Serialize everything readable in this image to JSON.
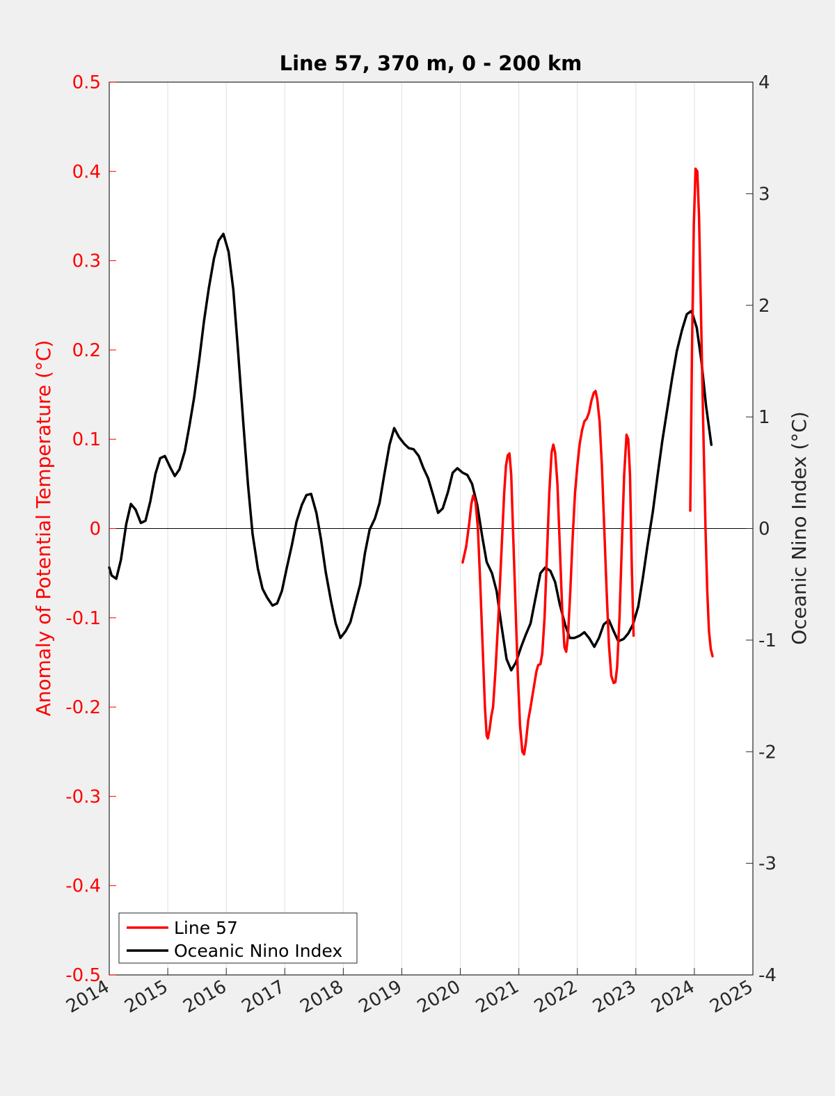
{
  "chart_data": {
    "type": "line",
    "title": "Line 57, 370 m, 0 - 200 km",
    "xlabel": "",
    "ylabel_left": "Anomaly of Potential Temperature (°C)",
    "ylabel_right": "Oceanic Nino Index (°C)",
    "xlim": [
      2014,
      2025
    ],
    "ylim_left": [
      -0.5,
      0.5
    ],
    "ylim_right": [
      -4,
      4
    ],
    "x_ticks": [
      "2014",
      "2015",
      "2016",
      "2017",
      "2018",
      "2019",
      "2020",
      "2021",
      "2022",
      "2023",
      "2024",
      "2025"
    ],
    "y_ticks_left": [
      "-0.5",
      "-0.4",
      "-0.3",
      "-0.2",
      "-0.1",
      "0",
      "0.1",
      "0.2",
      "0.3",
      "0.4",
      "0.5"
    ],
    "y_ticks_right": [
      "-4",
      "-3",
      "-2",
      "-1",
      "0",
      "1",
      "2",
      "3",
      "4"
    ],
    "grid": "vertical",
    "legend_position": "bottom-left",
    "colors": {
      "line57": "#ff0000",
      "oni": "#000000",
      "left_axis": "#ff0000",
      "right_axis": "#000000"
    },
    "series": [
      {
        "name": "Line 57",
        "axis": "left",
        "color": "#ff0000",
        "points": [
          [
            2020.04,
            -0.038
          ],
          [
            2020.1,
            -0.02
          ],
          [
            2020.15,
            0.005
          ],
          [
            2020.19,
            0.028
          ],
          [
            2020.22,
            0.037
          ],
          [
            2020.26,
            0.03
          ],
          [
            2020.3,
            0.0
          ],
          [
            2020.34,
            -0.06
          ],
          [
            2020.38,
            -0.13
          ],
          [
            2020.42,
            -0.2
          ],
          [
            2020.45,
            -0.232
          ],
          [
            2020.47,
            -0.235
          ],
          [
            2020.5,
            -0.225
          ],
          [
            2020.53,
            -0.21
          ],
          [
            2020.56,
            -0.2
          ],
          [
            2020.6,
            -0.16
          ],
          [
            2020.65,
            -0.1
          ],
          [
            2020.7,
            -0.03
          ],
          [
            2020.75,
            0.04
          ],
          [
            2020.78,
            0.07
          ],
          [
            2020.81,
            0.082
          ],
          [
            2020.84,
            0.084
          ],
          [
            2020.87,
            0.06
          ],
          [
            2020.9,
            0.0
          ],
          [
            2020.94,
            -0.08
          ],
          [
            2020.98,
            -0.16
          ],
          [
            2021.02,
            -0.22
          ],
          [
            2021.06,
            -0.25
          ],
          [
            2021.09,
            -0.253
          ],
          [
            2021.12,
            -0.24
          ],
          [
            2021.16,
            -0.215
          ],
          [
            2021.2,
            -0.2
          ],
          [
            2021.25,
            -0.18
          ],
          [
            2021.3,
            -0.16
          ],
          [
            2021.33,
            -0.153
          ],
          [
            2021.37,
            -0.152
          ],
          [
            2021.4,
            -0.14
          ],
          [
            2021.44,
            -0.1
          ],
          [
            2021.48,
            -0.03
          ],
          [
            2021.52,
            0.04
          ],
          [
            2021.56,
            0.085
          ],
          [
            2021.59,
            0.094
          ],
          [
            2021.62,
            0.085
          ],
          [
            2021.66,
            0.05
          ],
          [
            2021.7,
            -0.02
          ],
          [
            2021.74,
            -0.09
          ],
          [
            2021.78,
            -0.133
          ],
          [
            2021.81,
            -0.138
          ],
          [
            2021.84,
            -0.12
          ],
          [
            2021.88,
            -0.07
          ],
          [
            2021.92,
            -0.01
          ],
          [
            2021.96,
            0.04
          ],
          [
            2022.0,
            0.07
          ],
          [
            2022.04,
            0.095
          ],
          [
            2022.08,
            0.11
          ],
          [
            2022.12,
            0.12
          ],
          [
            2022.16,
            0.123
          ],
          [
            2022.2,
            0.13
          ],
          [
            2022.24,
            0.143
          ],
          [
            2022.28,
            0.152
          ],
          [
            2022.31,
            0.154
          ],
          [
            2022.34,
            0.145
          ],
          [
            2022.38,
            0.12
          ],
          [
            2022.42,
            0.07
          ],
          [
            2022.46,
            0.0
          ],
          [
            2022.5,
            -0.07
          ],
          [
            2022.54,
            -0.13
          ],
          [
            2022.58,
            -0.165
          ],
          [
            2022.62,
            -0.173
          ],
          [
            2022.65,
            -0.172
          ],
          [
            2022.68,
            -0.155
          ],
          [
            2022.72,
            -0.1
          ],
          [
            2022.76,
            -0.02
          ],
          [
            2022.8,
            0.06
          ],
          [
            2022.84,
            0.105
          ],
          [
            2022.87,
            0.1
          ],
          [
            2022.9,
            0.06
          ],
          [
            2022.93,
            -0.04
          ],
          [
            2022.96,
            -0.12
          ],
          [
            2023.93,
            0.02
          ],
          [
            2023.96,
            0.2
          ],
          [
            2023.99,
            0.34
          ],
          [
            2024.02,
            0.403
          ],
          [
            2024.05,
            0.4
          ],
          [
            2024.08,
            0.35
          ],
          [
            2024.11,
            0.25
          ],
          [
            2024.15,
            0.12
          ],
          [
            2024.19,
            0.0
          ],
          [
            2024.22,
            -0.07
          ],
          [
            2024.25,
            -0.115
          ],
          [
            2024.28,
            -0.135
          ],
          [
            2024.31,
            -0.143
          ]
        ]
      },
      {
        "name": "Oceanic Nino Index",
        "axis": "right",
        "color": "#000000",
        "points": [
          [
            2014.0,
            -0.35
          ],
          [
            2014.04,
            -0.42
          ],
          [
            2014.12,
            -0.45
          ],
          [
            2014.2,
            -0.28
          ],
          [
            2014.29,
            0.04
          ],
          [
            2014.37,
            0.22
          ],
          [
            2014.45,
            0.17
          ],
          [
            2014.54,
            0.05
          ],
          [
            2014.62,
            0.07
          ],
          [
            2014.7,
            0.24
          ],
          [
            2014.79,
            0.49
          ],
          [
            2014.87,
            0.63
          ],
          [
            2014.95,
            0.65
          ],
          [
            2015.04,
            0.55
          ],
          [
            2015.12,
            0.47
          ],
          [
            2015.2,
            0.53
          ],
          [
            2015.29,
            0.69
          ],
          [
            2015.37,
            0.92
          ],
          [
            2015.45,
            1.17
          ],
          [
            2015.54,
            1.52
          ],
          [
            2015.62,
            1.86
          ],
          [
            2015.7,
            2.15
          ],
          [
            2015.79,
            2.42
          ],
          [
            2015.87,
            2.58
          ],
          [
            2015.95,
            2.64
          ],
          [
            2016.04,
            2.48
          ],
          [
            2016.12,
            2.14
          ],
          [
            2016.2,
            1.6
          ],
          [
            2016.29,
            0.95
          ],
          [
            2016.37,
            0.4
          ],
          [
            2016.45,
            -0.05
          ],
          [
            2016.54,
            -0.36
          ],
          [
            2016.62,
            -0.54
          ],
          [
            2016.7,
            -0.62
          ],
          [
            2016.79,
            -0.69
          ],
          [
            2016.87,
            -0.67
          ],
          [
            2016.95,
            -0.56
          ],
          [
            2017.04,
            -0.34
          ],
          [
            2017.12,
            -0.15
          ],
          [
            2017.2,
            0.06
          ],
          [
            2017.29,
            0.21
          ],
          [
            2017.37,
            0.3
          ],
          [
            2017.45,
            0.31
          ],
          [
            2017.54,
            0.14
          ],
          [
            2017.62,
            -0.1
          ],
          [
            2017.7,
            -0.39
          ],
          [
            2017.79,
            -0.65
          ],
          [
            2017.87,
            -0.85
          ],
          [
            2017.95,
            -0.98
          ],
          [
            2018.04,
            -0.92
          ],
          [
            2018.12,
            -0.84
          ],
          [
            2018.2,
            -0.68
          ],
          [
            2018.29,
            -0.5
          ],
          [
            2018.37,
            -0.22
          ],
          [
            2018.45,
            -0.01
          ],
          [
            2018.54,
            0.09
          ],
          [
            2018.62,
            0.23
          ],
          [
            2018.7,
            0.48
          ],
          [
            2018.79,
            0.75
          ],
          [
            2018.87,
            0.9
          ],
          [
            2018.95,
            0.82
          ],
          [
            2019.04,
            0.76
          ],
          [
            2019.12,
            0.72
          ],
          [
            2019.2,
            0.71
          ],
          [
            2019.29,
            0.65
          ],
          [
            2019.37,
            0.54
          ],
          [
            2019.45,
            0.45
          ],
          [
            2019.54,
            0.29
          ],
          [
            2019.62,
            0.14
          ],
          [
            2019.7,
            0.18
          ],
          [
            2019.79,
            0.33
          ],
          [
            2019.87,
            0.5
          ],
          [
            2019.95,
            0.54
          ],
          [
            2020.04,
            0.5
          ],
          [
            2020.12,
            0.48
          ],
          [
            2020.2,
            0.4
          ],
          [
            2020.29,
            0.21
          ],
          [
            2020.37,
            -0.06
          ],
          [
            2020.45,
            -0.3
          ],
          [
            2020.54,
            -0.4
          ],
          [
            2020.62,
            -0.56
          ],
          [
            2020.7,
            -0.86
          ],
          [
            2020.79,
            -1.17
          ],
          [
            2020.87,
            -1.27
          ],
          [
            2020.95,
            -1.2
          ],
          [
            2021.04,
            -1.06
          ],
          [
            2021.12,
            -0.95
          ],
          [
            2021.2,
            -0.85
          ],
          [
            2021.29,
            -0.61
          ],
          [
            2021.37,
            -0.4
          ],
          [
            2021.45,
            -0.35
          ],
          [
            2021.54,
            -0.38
          ],
          [
            2021.62,
            -0.48
          ],
          [
            2021.7,
            -0.68
          ],
          [
            2021.79,
            -0.86
          ],
          [
            2021.87,
            -0.98
          ],
          [
            2021.95,
            -0.98
          ],
          [
            2022.04,
            -0.96
          ],
          [
            2022.12,
            -0.93
          ],
          [
            2022.2,
            -0.98
          ],
          [
            2022.29,
            -1.06
          ],
          [
            2022.37,
            -0.98
          ],
          [
            2022.45,
            -0.86
          ],
          [
            2022.54,
            -0.82
          ],
          [
            2022.62,
            -0.92
          ],
          [
            2022.7,
            -1.01
          ],
          [
            2022.79,
            -0.99
          ],
          [
            2022.87,
            -0.94
          ],
          [
            2022.95,
            -0.86
          ],
          [
            2023.04,
            -0.7
          ],
          [
            2023.12,
            -0.44
          ],
          [
            2023.2,
            -0.15
          ],
          [
            2023.29,
            0.15
          ],
          [
            2023.37,
            0.47
          ],
          [
            2023.45,
            0.78
          ],
          [
            2023.54,
            1.08
          ],
          [
            2023.62,
            1.35
          ],
          [
            2023.7,
            1.59
          ],
          [
            2023.79,
            1.78
          ],
          [
            2023.87,
            1.92
          ],
          [
            2023.95,
            1.95
          ],
          [
            2024.04,
            1.8
          ],
          [
            2024.12,
            1.5
          ],
          [
            2024.2,
            1.1
          ],
          [
            2024.29,
            0.75
          ]
        ]
      }
    ]
  }
}
